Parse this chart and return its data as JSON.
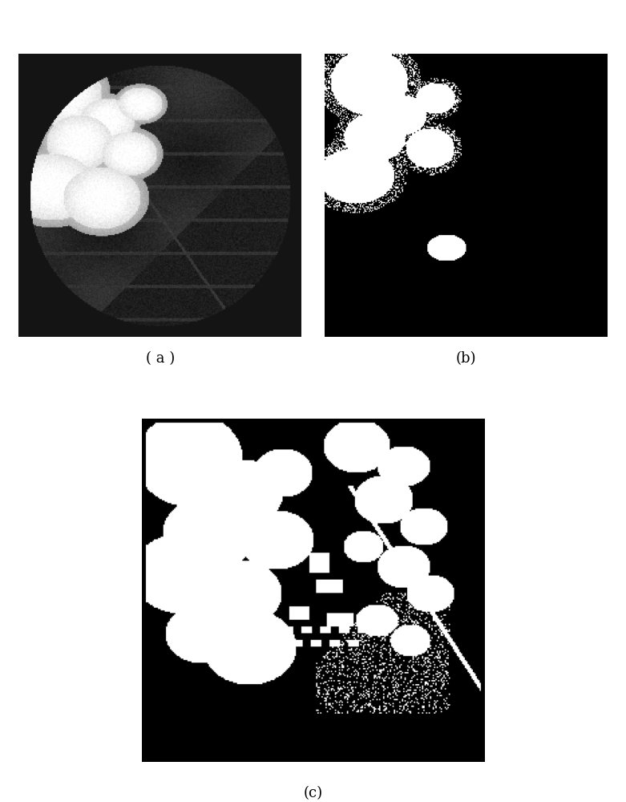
{
  "fig_width": 7.81,
  "fig_height": 10.0,
  "dpi": 100,
  "bg_color": "#ffffff",
  "label_a": "( a )",
  "label_b": "(b)",
  "label_c": "(c)",
  "label_fontsize": 13
}
